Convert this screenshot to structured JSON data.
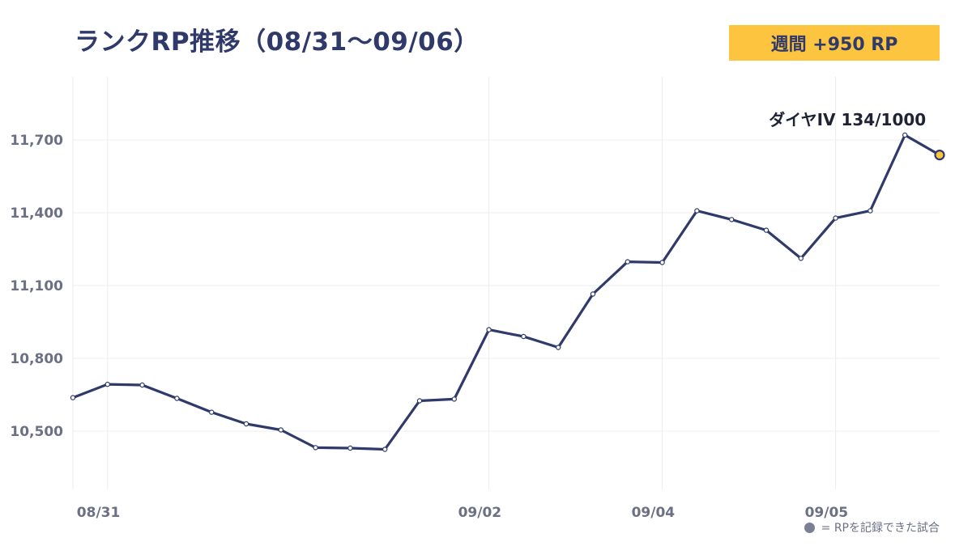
{
  "header": {
    "title": "ランクRP推移（08/31〜09/06）",
    "weekly_badge": "週間 +950 RP"
  },
  "footnote": {
    "text": "= RPを記録できた試合"
  },
  "colors": {
    "line": "#2f3a6b",
    "badge_bg": "#fcc43f",
    "last_point": "#fcc43f",
    "grid": "#ececf1",
    "axis_text": "#6b7085"
  },
  "chart_data": {
    "type": "line",
    "title": "ランクRP推移（08/31〜09/06）",
    "xlabel": "",
    "ylabel": "",
    "x_ticks": [
      {
        "label": "08/31",
        "x": 1
      },
      {
        "label": "09/02",
        "x": 12
      },
      {
        "label": "09/04",
        "x": 17
      },
      {
        "label": "09/05",
        "x": 22
      }
    ],
    "y_ticks": [
      10500,
      10800,
      11100,
      11400,
      11700
    ],
    "y_tick_labels": [
      "10,500",
      "10,800",
      "11,100",
      "11,400",
      "11,700"
    ],
    "xlim": [
      0,
      25
    ],
    "ylim": [
      10260,
      11960
    ],
    "grid": true,
    "series": [
      {
        "x": [
          0,
          1,
          2,
          3,
          4,
          5,
          6,
          7,
          8,
          9,
          10,
          11,
          12,
          13,
          14,
          15,
          16,
          17,
          18,
          19,
          20,
          21,
          22,
          23,
          24,
          25
        ],
        "values": [
          10638,
          10693,
          10690,
          10635,
          10578,
          10530,
          10505,
          10432,
          10430,
          10425,
          10625,
          10632,
          10918,
          10890,
          10845,
          11065,
          11198,
          11195,
          11408,
          11372,
          11328,
          11212,
          11378,
          11408,
          11720,
          11638
        ]
      }
    ],
    "annotation": {
      "text": "ダイヤIV 134/1000",
      "point_index": 24
    }
  }
}
